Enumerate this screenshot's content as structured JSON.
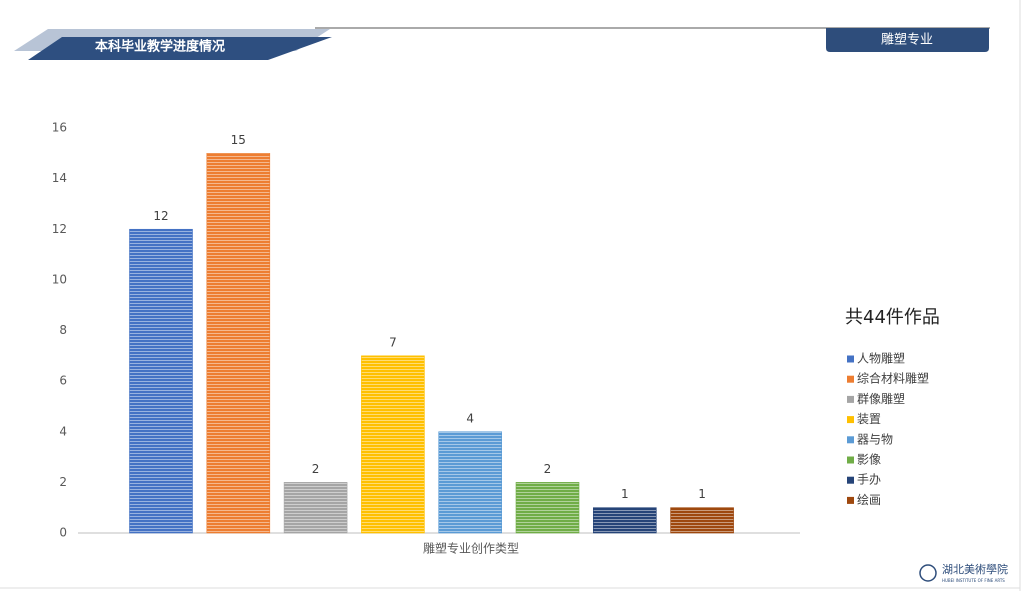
{
  "header": {
    "title": "本科毕业教学进度情况",
    "tab": "雕塑专业"
  },
  "footer": {
    "logo": "湖北美術學院",
    "logo_subtitle": "HUBEI INSTITUTE OF FINE ARTS"
  },
  "chart_data": {
    "type": "bar",
    "annotation": "共44件作品",
    "categories": [
      "雕塑专业创作类型"
    ],
    "series": [
      {
        "name": "人物雕塑",
        "color": "#4472c4",
        "values": [
          12
        ]
      },
      {
        "name": "综合材料雕塑",
        "color": "#ed7d31",
        "values": [
          15
        ]
      },
      {
        "name": "群像雕塑",
        "color": "#a5a5a5",
        "values": [
          2
        ]
      },
      {
        "name": "装置",
        "color": "#ffc000",
        "values": [
          7
        ]
      },
      {
        "name": "器与物",
        "color": "#5b9bd5",
        "values": [
          4
        ]
      },
      {
        "name": "影像",
        "color": "#70ad47",
        "values": [
          2
        ]
      },
      {
        "name": "手办",
        "color": "#264478",
        "values": [
          1
        ]
      },
      {
        "name": "绘画",
        "color": "#9e480e",
        "values": [
          1
        ]
      }
    ],
    "ylim": [
      0,
      16
    ],
    "yticks": [
      0,
      2,
      4,
      6,
      8,
      10,
      12,
      14,
      16
    ],
    "grid": false,
    "legend": "right"
  }
}
